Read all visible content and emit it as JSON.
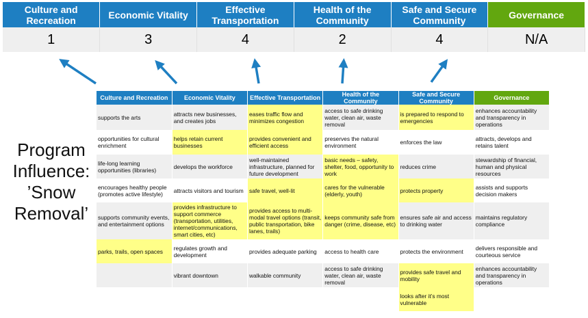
{
  "colors": {
    "blue": "#1e7fc2",
    "green": "#62a70f",
    "highlight": "#ffff88"
  },
  "scores": [
    {
      "label": "Culture and Recreation",
      "score": "1",
      "color": "#1e7fc2"
    },
    {
      "label": "Economic Vitality",
      "score": "3",
      "color": "#1e7fc2"
    },
    {
      "label": "Effective Transportation",
      "score": "4",
      "color": "#1e7fc2"
    },
    {
      "label": "Health of the Community",
      "score": "2",
      "color": "#1e7fc2"
    },
    {
      "label": "Safe and Secure Community",
      "score": "4",
      "color": "#1e7fc2"
    },
    {
      "label": "Governance",
      "score": "N/A",
      "color": "#62a70f"
    }
  ],
  "program_label": "Program Influence: ’Snow Removal’",
  "grid": {
    "headers": [
      "Culture and Recreation",
      "Economic Vitality",
      "Effective Transportation",
      "Health of the Community",
      "Safe and Secure Community",
      "Governance"
    ],
    "rows": [
      [
        {
          "t": "supports the arts",
          "h": 0
        },
        {
          "t": "attracts new businesses, and creates jobs",
          "h": 0
        },
        {
          "t": "eases traffic flow and minimizes congestion",
          "h": 1
        },
        {
          "t": "access to safe drinking water, clean air, waste removal",
          "h": 0
        },
        {
          "t": "is prepared to respond to emergencies",
          "h": 1
        },
        {
          "t": "enhances accountability and transparency in operations",
          "h": 0
        }
      ],
      [
        {
          "t": "opportunities for cultural enrichment",
          "h": 0
        },
        {
          "t": "helps retain current businesses",
          "h": 1
        },
        {
          "t": "provides convenient and efficient access",
          "h": 1
        },
        {
          "t": "preserves the natural environment",
          "h": 0
        },
        {
          "t": "enforces the law",
          "h": 0
        },
        {
          "t": "attracts, develops and retains talent",
          "h": 0
        }
      ],
      [
        {
          "t": "life-long learning opportunities (libraries)",
          "h": 0
        },
        {
          "t": "develops the workforce",
          "h": 0
        },
        {
          "t": "well-maintained infrastructure, planned for future development",
          "h": 0
        },
        {
          "t": "basic needs – safety, shelter, food, opportunity to work",
          "h": 1
        },
        {
          "t": "reduces crime",
          "h": 0
        },
        {
          "t": "stewardship of financial, human and physical resources",
          "h": 0
        }
      ],
      [
        {
          "t": "encourages healthy people (promotes active lifestyle)",
          "h": 0
        },
        {
          "t": "attracts visitors and tourism",
          "h": 0
        },
        {
          "t": "safe travel, well-lit",
          "h": 1
        },
        {
          "t": "cares for the vulnerable (elderly, youth)",
          "h": 1
        },
        {
          "t": "protects property",
          "h": 1
        },
        {
          "t": "assists and supports decision makers",
          "h": 0
        }
      ],
      [
        {
          "t": "supports community events, and entertainment options",
          "h": 0
        },
        {
          "t": "provides infrastructure to support commerce (transportation, utilities, internet/communications, smart cities, etc)",
          "h": 1
        },
        {
          "t": "provides access to multi-modal travel options (transit, public transportation, bike lanes, trails)",
          "h": 1
        },
        {
          "t": "keeps community safe from danger (crime, disease, etc)",
          "h": 1
        },
        {
          "t": "ensures safe air and access to drinking water",
          "h": 0
        },
        {
          "t": "maintains regulatory compliance",
          "h": 0
        }
      ],
      [
        {
          "t": "parks, trails, open spaces",
          "h": 1
        },
        {
          "t": "regulates growth and development",
          "h": 0
        },
        {
          "t": "provides adequate parking",
          "h": 0
        },
        {
          "t": "access to health care",
          "h": 0
        },
        {
          "t": "protects the environment",
          "h": 0
        },
        {
          "t": "delivers responsible and courteous service",
          "h": 0
        }
      ],
      [
        {
          "t": "",
          "h": 0
        },
        {
          "t": "vibrant downtown",
          "h": 0
        },
        {
          "t": "walkable community",
          "h": 0
        },
        {
          "t": "access to safe drinking water, clean air, waste removal",
          "h": 0
        },
        {
          "t": "provides safe travel and mobility",
          "h": 1
        },
        {
          "t": "enhances accountability and transparency in operations",
          "h": 0
        }
      ],
      [
        {
          "t": "",
          "h": 0
        },
        {
          "t": "",
          "h": 0
        },
        {
          "t": "",
          "h": 0
        },
        {
          "t": "",
          "h": 0
        },
        {
          "t": "looks after it’s most vulnerable",
          "h": 1
        },
        {
          "t": "",
          "h": 0
        }
      ]
    ]
  }
}
